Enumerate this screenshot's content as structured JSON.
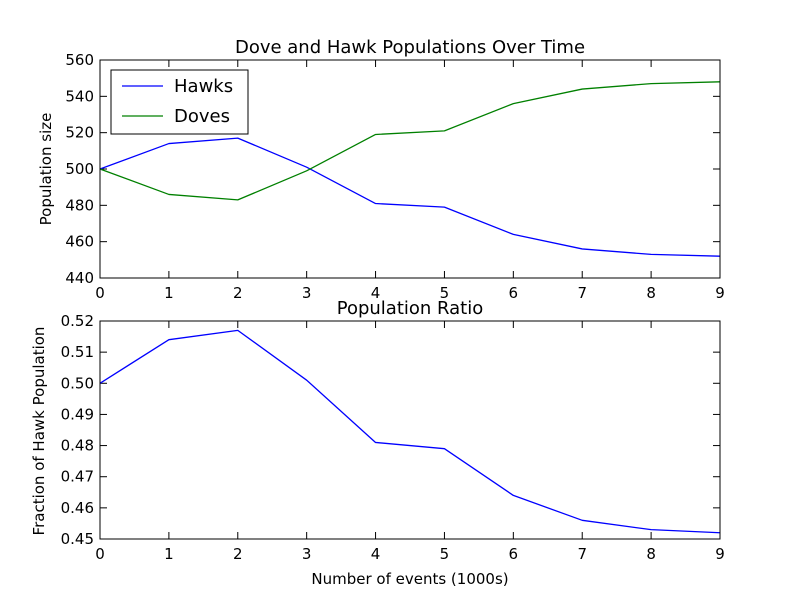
{
  "chart_data": [
    {
      "type": "line",
      "title": "Dove and Hawk Populations Over Time",
      "xlabel": "",
      "ylabel": "Population size",
      "x": [
        0,
        1,
        2,
        3,
        4,
        5,
        6,
        7,
        8,
        9
      ],
      "xlim": [
        0,
        9
      ],
      "ylim": [
        440,
        560
      ],
      "xticks": [
        "0",
        "1",
        "2",
        "3",
        "4",
        "5",
        "6",
        "7",
        "8",
        "9"
      ],
      "yticks": [
        "440",
        "460",
        "480",
        "500",
        "520",
        "540",
        "560"
      ],
      "legend": "top-left",
      "grid": false,
      "series": [
        {
          "name": "Hawks",
          "color": "#0000ff",
          "values": [
            500,
            514,
            517,
            501,
            481,
            479,
            464,
            456,
            453,
            452
          ]
        },
        {
          "name": "Doves",
          "color": "#008000",
          "values": [
            500,
            486,
            483,
            499,
            519,
            521,
            536,
            544,
            547,
            548
          ]
        }
      ]
    },
    {
      "type": "line",
      "title": "Population Ratio",
      "xlabel": "Number of events (1000s)",
      "ylabel": "Fraction of Hawk Population",
      "x": [
        0,
        1,
        2,
        3,
        4,
        5,
        6,
        7,
        8,
        9
      ],
      "xlim": [
        0,
        9
      ],
      "ylim": [
        0.45,
        0.52
      ],
      "xticks": [
        "0",
        "1",
        "2",
        "3",
        "4",
        "5",
        "6",
        "7",
        "8",
        "9"
      ],
      "yticks": [
        "0.45",
        "0.46",
        "0.47",
        "0.48",
        "0.49",
        "0.50",
        "0.51",
        "0.52"
      ],
      "grid": false,
      "series": [
        {
          "color": "#0000ff",
          "values": [
            0.5,
            0.514,
            0.517,
            0.501,
            0.481,
            0.479,
            0.464,
            0.456,
            0.453,
            0.452
          ]
        }
      ]
    }
  ]
}
